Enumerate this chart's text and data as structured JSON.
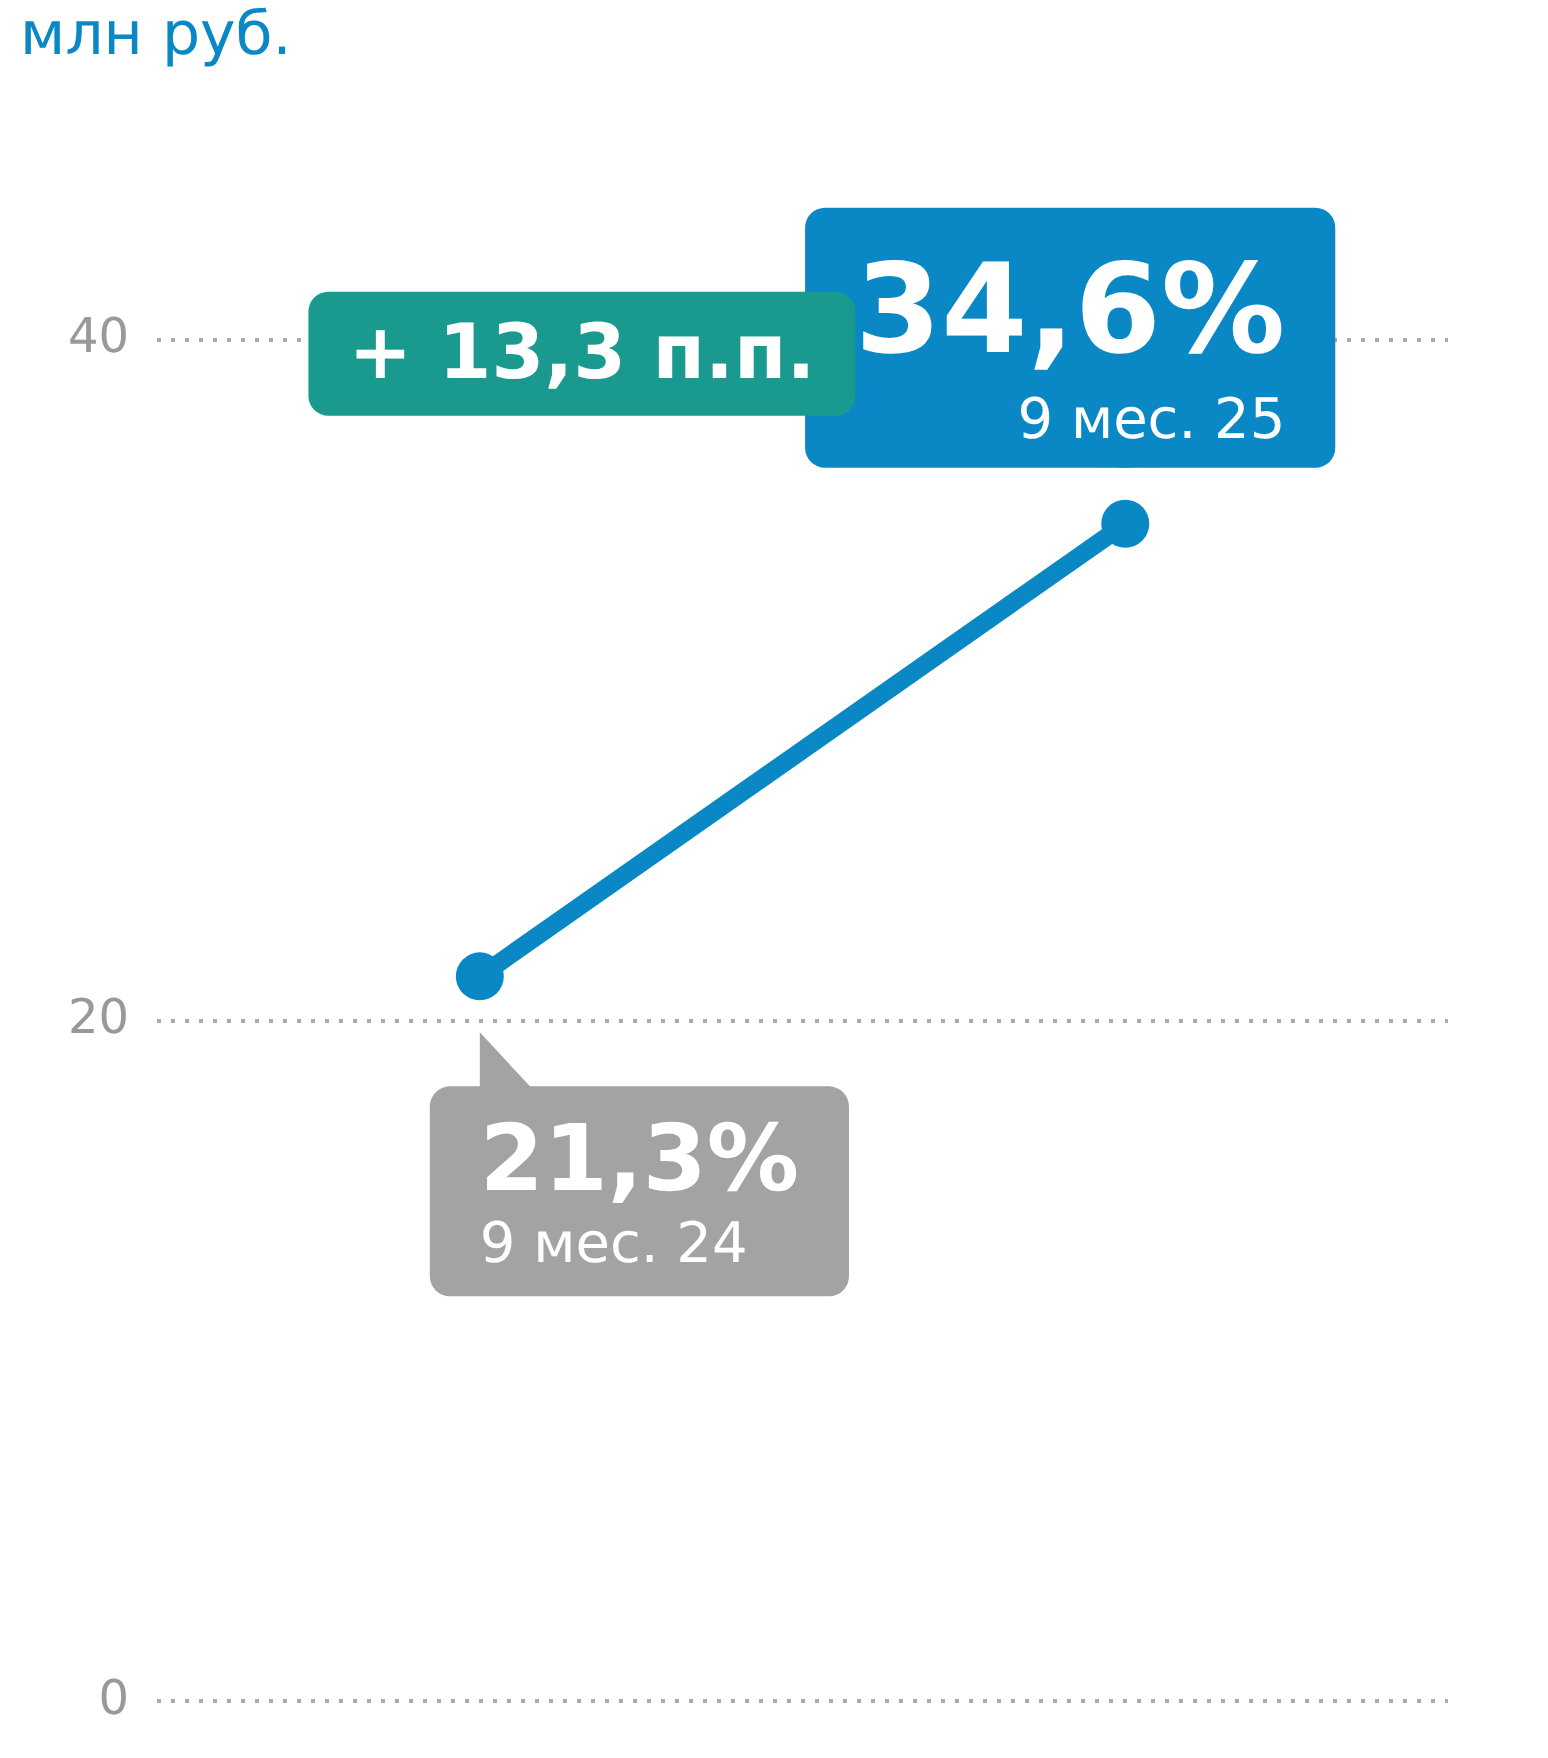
{
  "chart_data": {
    "type": "line",
    "title": "млн руб.",
    "categories": [
      "9 мес. 24",
      "9 мес. 25"
    ],
    "series": [
      {
        "color": "#0a88c6",
        "values": [
          21.3,
          34.6
        ],
        "value_labels": [
          "21,3%",
          "34,6%"
        ]
      }
    ],
    "ylim": [
      0,
      40
    ],
    "yticks": [
      0,
      20,
      40
    ],
    "grid": "y",
    "legend": false,
    "tick_labels": "y",
    "marker": "circle",
    "line_style": "solid",
    "annotations": [
      "+ 13,3 п.п."
    ]
  }
}
